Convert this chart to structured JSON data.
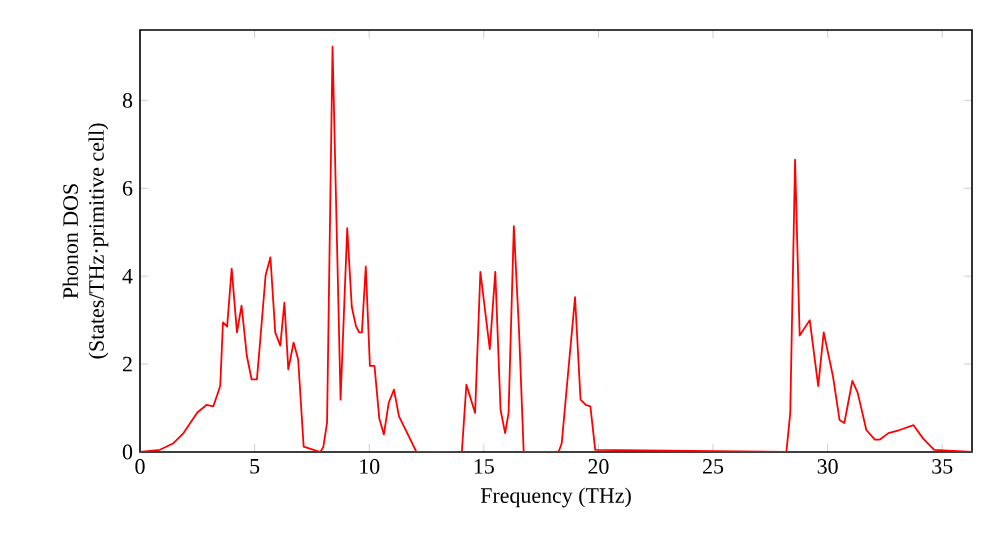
{
  "chart_data": {
    "type": "line",
    "xlabel": "Frequency (THz)",
    "ylabel": "Phonon DOS\n(States/THz·primitive cell)",
    "xlim": [
      0,
      36.3
    ],
    "ylim": [
      0,
      9.6
    ],
    "xticks": [
      0,
      5,
      10,
      15,
      20,
      25,
      30,
      35
    ],
    "yticks": [
      0,
      2,
      4,
      6,
      8
    ],
    "series": [
      {
        "color": "#ff0000",
        "x": [
          0,
          0.87,
          1.46,
          1.9,
          2.5,
          2.9,
          3.2,
          3.5,
          3.62,
          3.8,
          4.0,
          4.23,
          4.43,
          4.66,
          4.87,
          5.1,
          5.25,
          5.48,
          5.69,
          5.9,
          6.12,
          6.3,
          6.47,
          6.7,
          6.9,
          7.14,
          7.87,
          8.0,
          8.16,
          8.4,
          8.75,
          9.04,
          9.24,
          9.42,
          9.56,
          9.68,
          9.85,
          10.03,
          10.23,
          10.44,
          10.64,
          10.85,
          11.08,
          11.3,
          11.66,
          12.06,
          14.04,
          14.24,
          14.62,
          14.85,
          15.26,
          15.5,
          15.73,
          15.93,
          16.08,
          16.31,
          16.54,
          16.74,
          18.26,
          18.4,
          18.63,
          18.98,
          19.22,
          19.45,
          19.65,
          19.86,
          28.2,
          28.37,
          28.58,
          28.78,
          29.22,
          29.59,
          29.83,
          30.23,
          30.52,
          30.73,
          31.08,
          31.31,
          31.69,
          32.06,
          32.27,
          32.65,
          33.14,
          33.75,
          34.16,
          34.65,
          36.3
        ],
        "values": [
          0,
          0.05,
          0.2,
          0.43,
          0.9,
          1.07,
          1.04,
          1.5,
          2.95,
          2.85,
          4.17,
          2.72,
          3.33,
          2.19,
          1.65,
          1.65,
          2.57,
          4.02,
          4.43,
          2.72,
          2.42,
          3.4,
          1.88,
          2.49,
          2.11,
          0.12,
          0,
          0.12,
          0.66,
          9.22,
          1.19,
          5.09,
          3.3,
          2.87,
          2.72,
          2.72,
          4.22,
          1.96,
          1.96,
          0.76,
          0.4,
          1.12,
          1.42,
          0.81,
          0.43,
          0,
          0,
          1.53,
          0.89,
          4.1,
          2.34,
          4.1,
          0.96,
          0.43,
          0.89,
          5.14,
          2.72,
          0,
          0,
          0.2,
          1.53,
          3.52,
          1.19,
          1.07,
          1.04,
          0.05,
          0,
          0.89,
          6.65,
          2.65,
          3.0,
          1.5,
          2.72,
          1.73,
          0.73,
          0.66,
          1.62,
          1.35,
          0.5,
          0.28,
          0.28,
          0.43,
          0.5,
          0.61,
          0.31,
          0.05,
          0
        ]
      }
    ]
  }
}
